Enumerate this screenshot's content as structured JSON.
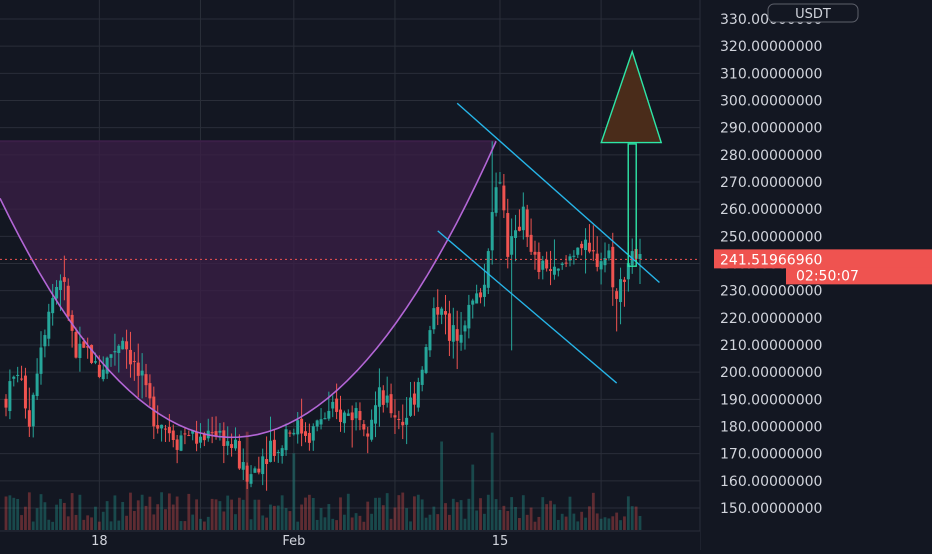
{
  "chart_data": {
    "type": "candlestick",
    "symbol_currency": "USDT",
    "price_axis": {
      "ylim": [
        145,
        332
      ],
      "ticks": [
        {
          "value": 150,
          "label": "150.00000000"
        },
        {
          "value": 160,
          "label": "160.00000000"
        },
        {
          "value": 170,
          "label": "170.00000000"
        },
        {
          "value": 180,
          "label": "180.00000000"
        },
        {
          "value": 190,
          "label": "190.00000000"
        },
        {
          "value": 200,
          "label": "200.00000000"
        },
        {
          "value": 210,
          "label": "210.00000000"
        },
        {
          "value": 220,
          "label": "220.00000000"
        },
        {
          "value": 230,
          "label": "230.00000000"
        },
        {
          "value": 240,
          "label": "240.00000000"
        },
        {
          "value": 250,
          "label": "250.00000000"
        },
        {
          "value": 260,
          "label": "260.00000000"
        },
        {
          "value": 270,
          "label": "270.00000000"
        },
        {
          "value": 280,
          "label": "280.00000000"
        },
        {
          "value": 290,
          "label": "290.00000000"
        },
        {
          "value": 300,
          "label": "300.00000000"
        },
        {
          "value": 310,
          "label": "310.00000000"
        },
        {
          "value": 320,
          "label": "320.00000000"
        },
        {
          "value": 330,
          "label": "330.00000000"
        }
      ]
    },
    "time_axis": {
      "ticks": [
        {
          "label": "18",
          "index": 24
        },
        {
          "label": "Feb",
          "index": 74
        },
        {
          "label": "15",
          "index": 127
        }
      ]
    },
    "current_price": {
      "value": 241.5196696,
      "label": "241.51966960",
      "countdown": "02:50:07"
    },
    "candles_anchor_path": [
      [
        0,
        190
      ],
      [
        3,
        201
      ],
      [
        6,
        183
      ],
      [
        9,
        212
      ],
      [
        12,
        228
      ],
      [
        14,
        236
      ],
      [
        16,
        222
      ],
      [
        18,
        205
      ],
      [
        21,
        208
      ],
      [
        24,
        200
      ],
      [
        27,
        207
      ],
      [
        30,
        213
      ],
      [
        32,
        206
      ],
      [
        35,
        195
      ],
      [
        38,
        185
      ],
      [
        41,
        180
      ],
      [
        44,
        176
      ],
      [
        47,
        178
      ],
      [
        50,
        174
      ],
      [
        53,
        180
      ],
      [
        56,
        176
      ],
      [
        59,
        171
      ],
      [
        62,
        160
      ],
      [
        65,
        167
      ],
      [
        68,
        174
      ],
      [
        70,
        170
      ],
      [
        72,
        179
      ],
      [
        75,
        180
      ],
      [
        78,
        177
      ],
      [
        81,
        183
      ],
      [
        84,
        184
      ],
      [
        87,
        184
      ],
      [
        90,
        186
      ],
      [
        93,
        182
      ],
      [
        96,
        190
      ],
      [
        99,
        186
      ],
      [
        102,
        182
      ],
      [
        105,
        192
      ],
      [
        108,
        208
      ],
      [
        110,
        222
      ],
      [
        112,
        226
      ],
      [
        114,
        211
      ],
      [
        117,
        219
      ],
      [
        120,
        225
      ],
      [
        123,
        232
      ],
      [
        125,
        262
      ],
      [
        127,
        272
      ],
      [
        129,
        246
      ],
      [
        131,
        248
      ],
      [
        133,
        262
      ],
      [
        135,
        242
      ],
      [
        137,
        238
      ],
      [
        139,
        240
      ],
      [
        141,
        235
      ],
      [
        144,
        240
      ],
      [
        147,
        248
      ],
      [
        150,
        242
      ],
      [
        153,
        242
      ],
      [
        155,
        244
      ],
      [
        157,
        226
      ],
      [
        159,
        238
      ],
      [
        161,
        245
      ],
      [
        163,
        240
      ]
    ],
    "volume_profile": "low bars along the bottom, spikes near index 62, 74, 112, 125",
    "drawings": [
      {
        "type": "cup-arc",
        "color": "#b366d6"
      },
      {
        "type": "shaded-zone",
        "color": "#3b1f47"
      },
      {
        "type": "descending-channel",
        "color": "#26b5e8"
      },
      {
        "type": "target-arrow",
        "color": "#2ee6a6",
        "fill": "#4a2c1a"
      }
    ],
    "colors": {
      "background": "#131722",
      "grid": "#2a2e39",
      "up_candle": "#26a69a",
      "down_candle": "#ef5350",
      "price_line": "#ef5350",
      "axis_text": "#d1d4dc"
    }
  }
}
